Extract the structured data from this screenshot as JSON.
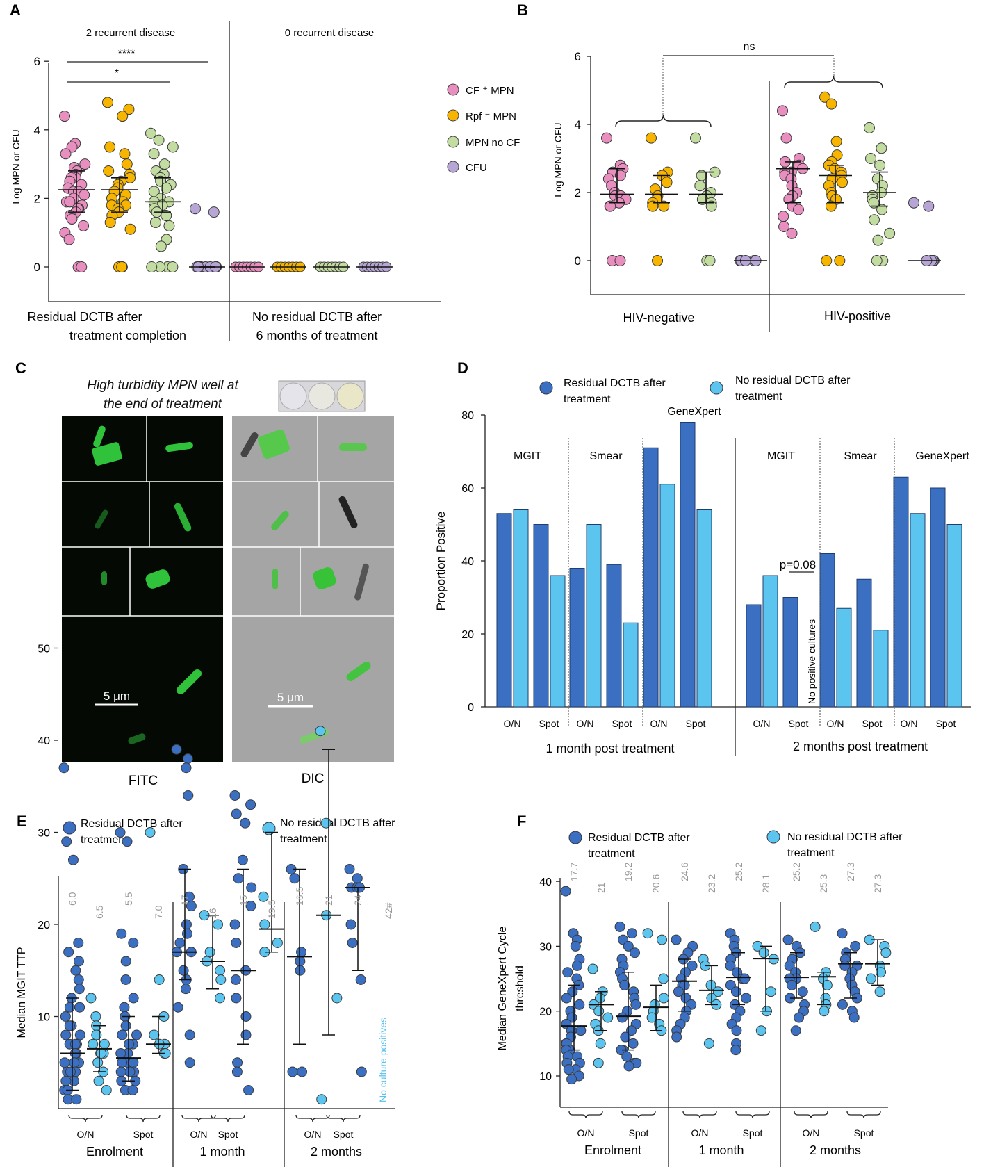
{
  "colors": {
    "cf_mpn": "#e98fc0",
    "rpf_mpn": "#f7b500",
    "mpn_no_cf": "#c3dca1",
    "cfu": "#b7a6d5",
    "dark_blue": "#3b6fc1",
    "light_blue": "#5cc5ef",
    "grey_label": "#999999",
    "cyan_text": "#55c1ee"
  },
  "panelA": {
    "letter": "A",
    "groups": [
      "2 recurrent disease",
      "0 recurrent disease"
    ],
    "x_groups": [
      [
        "Residual DCTB after",
        "treatment completion"
      ],
      [
        "No residual DCTB after",
        "6 months of treatment"
      ]
    ],
    "ylabel": "Log MPN or CFU",
    "yticks": [
      "0",
      "2",
      "4",
      "6"
    ],
    "sig": [
      "****",
      "*"
    ]
  },
  "legendAB": [
    "CF ⁺ MPN",
    "Rpf ⁻ MPN",
    "MPN no CF",
    "CFU"
  ],
  "panelB": {
    "letter": "B",
    "ylabel": "Log MPN or CFU",
    "yticks": [
      "0",
      "2",
      "4",
      "6"
    ],
    "ns": "ns",
    "groups": [
      "HIV-negative",
      "HIV-positive"
    ]
  },
  "panelC": {
    "letter": "C",
    "title": [
      "High turbidity MPN well at",
      "the end of treatment"
    ],
    "scale": "5 μm",
    "scale2": "5 μm",
    "labels": [
      "FITC",
      "DIC"
    ]
  },
  "chart_data": [
    {
      "type": "bar",
      "panel": "D",
      "ylabel": "Proportion Positive",
      "ylim": [
        0,
        80
      ],
      "yticks": [
        "0",
        "20",
        "40",
        "60",
        "80"
      ],
      "legend": [
        "Residual DCTB after\ntreatment",
        "No residual DCTB after\ntreatment"
      ],
      "groups": [
        "MGIT",
        "Smear",
        "GeneXpert",
        "MGIT",
        "Smear",
        "GeneXpert"
      ],
      "categories": [
        "O/N",
        "Spot",
        "O/N",
        "Spot",
        "O/N",
        "Spot",
        "O/N",
        "Spot",
        "O/N",
        "Spot",
        "O/N",
        "Spot"
      ],
      "timepoints": [
        "1 month post treatment",
        "2 months post treatment"
      ],
      "series": [
        {
          "name": "Residual DCTB after treatment",
          "values": [
            53,
            50,
            38,
            39,
            71,
            78,
            28,
            30,
            42,
            35,
            63,
            60
          ]
        },
        {
          "name": "No residual DCTB after treatment",
          "values": [
            54,
            36,
            50,
            23,
            61,
            54,
            36,
            null,
            27,
            21,
            53,
            50
          ]
        }
      ],
      "annotations": [
        "p=0.08",
        "No positive cultures"
      ]
    },
    {
      "type": "scatter",
      "panel": "E",
      "ylabel": "Median MGIT TTP",
      "ylim": [
        0,
        50
      ],
      "yticks": [
        "10",
        "20",
        "30",
        "40",
        "50"
      ],
      "legend": [
        "Residual DCTB after\ntreatment",
        "No residual DCTB after\ntreatment"
      ],
      "categories": [
        "O/N",
        "Spot",
        "O/N",
        "Spot",
        "O/N",
        "Spot"
      ],
      "timepoints": [
        "Enrolment",
        "1 month",
        "2 months"
      ],
      "medians": [
        "6.0",
        "6.5",
        "5.5",
        "7.0",
        "17",
        "16",
        "15",
        "19.5",
        "16.5",
        "21",
        "24",
        "42#"
      ],
      "median_values": [
        6.0,
        6.5,
        5.5,
        7.0,
        17,
        16,
        15,
        19.5,
        16.5,
        21,
        24,
        null
      ],
      "note": "No culture positives"
    },
    {
      "type": "scatter",
      "panel": "F",
      "ylabel": "Median GeneXpert Cycle\nthreshold",
      "ylim": [
        5,
        42
      ],
      "yticks": [
        "10",
        "20",
        "30",
        "40"
      ],
      "legend": [
        "Residual DCTB after\ntreatment",
        "No residual DCTB after\ntreatment"
      ],
      "categories": [
        "O/N",
        "Spot",
        "O/N",
        "Spot",
        "O/N",
        "Spot"
      ],
      "timepoints": [
        "Enrolment",
        "1 month",
        "2 months"
      ],
      "medians": [
        "17.7",
        "21",
        "19.2",
        "20.6",
        "24.6",
        "23.2",
        "25.2",
        "28.1",
        "25.2",
        "25.3",
        "27.3",
        "27.3"
      ],
      "median_values": [
        17.7,
        21,
        19.2,
        20.6,
        24.6,
        23.2,
        25.2,
        28.1,
        25.2,
        25.3,
        27.3,
        27.3
      ]
    }
  ]
}
